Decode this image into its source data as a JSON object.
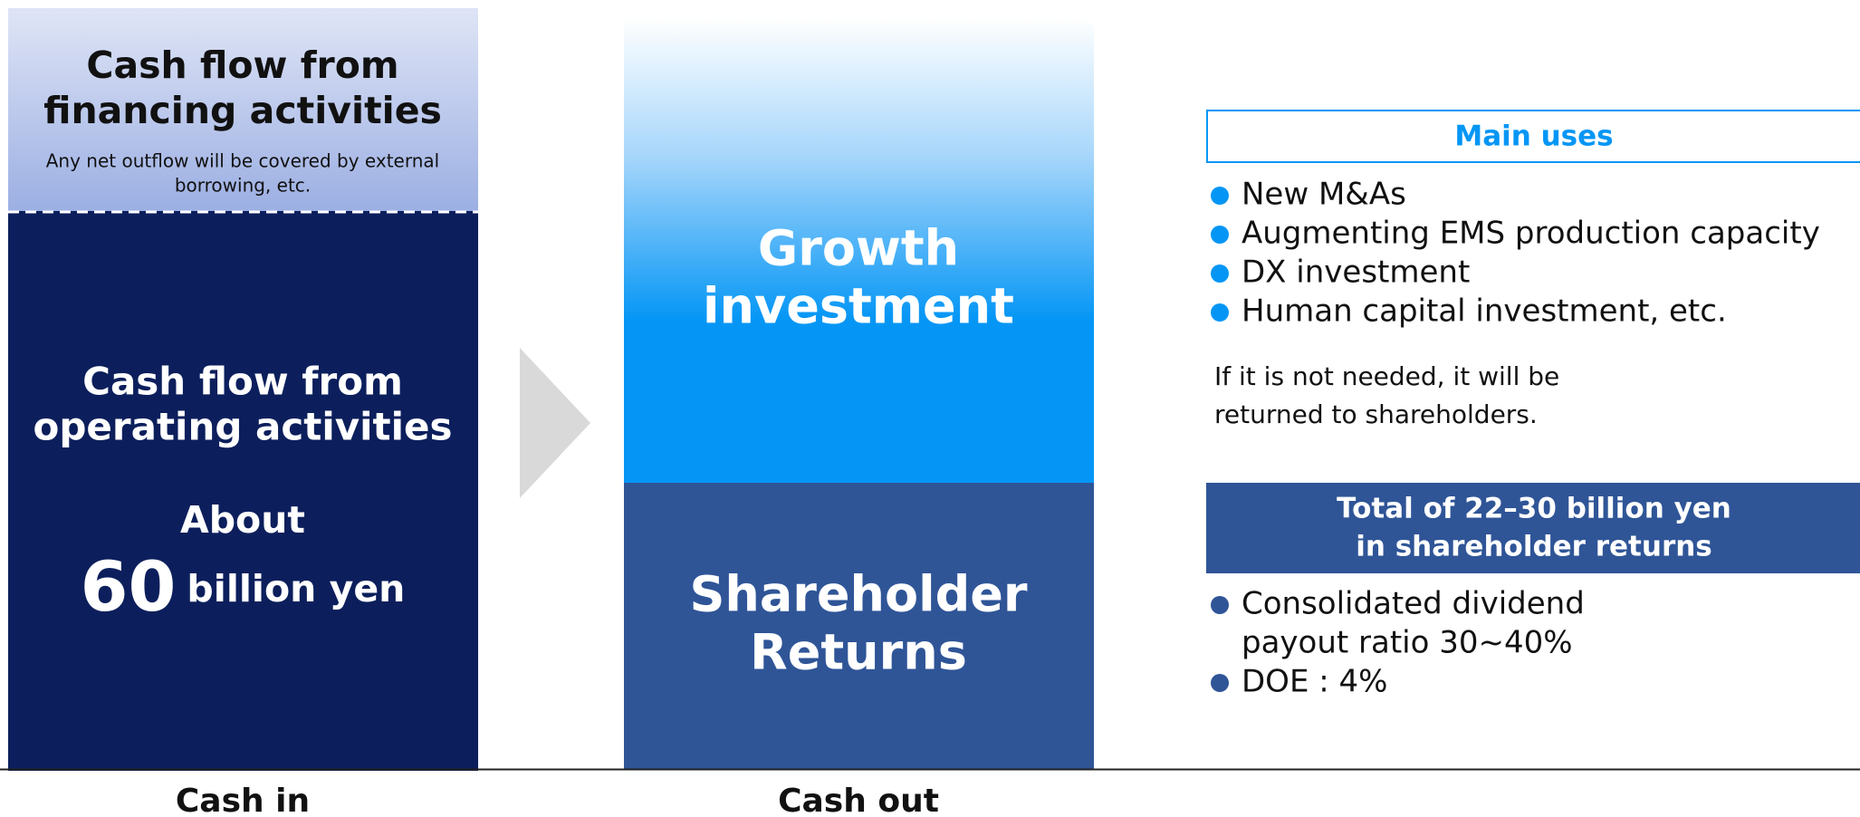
{
  "cash_in": {
    "financing": {
      "title": [
        "Cash flow from",
        "financing activities"
      ],
      "note": [
        "Any net outflow will be covered by external",
        "borrowing, etc."
      ]
    },
    "operating": {
      "title": [
        "Cash flow from",
        "operating activities"
      ],
      "about": "About",
      "amount": "60",
      "unit": "billion yen"
    },
    "label": "Cash in"
  },
  "cash_out": {
    "growth": [
      "Growth",
      "investment"
    ],
    "returns": [
      "Shareholder",
      "Returns"
    ],
    "label": "Cash out"
  },
  "main_uses": {
    "header": "Main uses",
    "items": [
      "New M&As",
      "Augmenting EMS production capacity",
      "DX investment",
      "Human capital investment, etc."
    ],
    "note": [
      "If it is not needed, it will be",
      "returned to shareholders."
    ]
  },
  "shareholder_returns": {
    "header": [
      "Total of 22–30 billion yen",
      "in shareholder returns"
    ],
    "items": [
      [
        "Consolidated dividend",
        "payout ratio 30~40%"
      ],
      [
        "DOE : 4%"
      ]
    ]
  }
}
